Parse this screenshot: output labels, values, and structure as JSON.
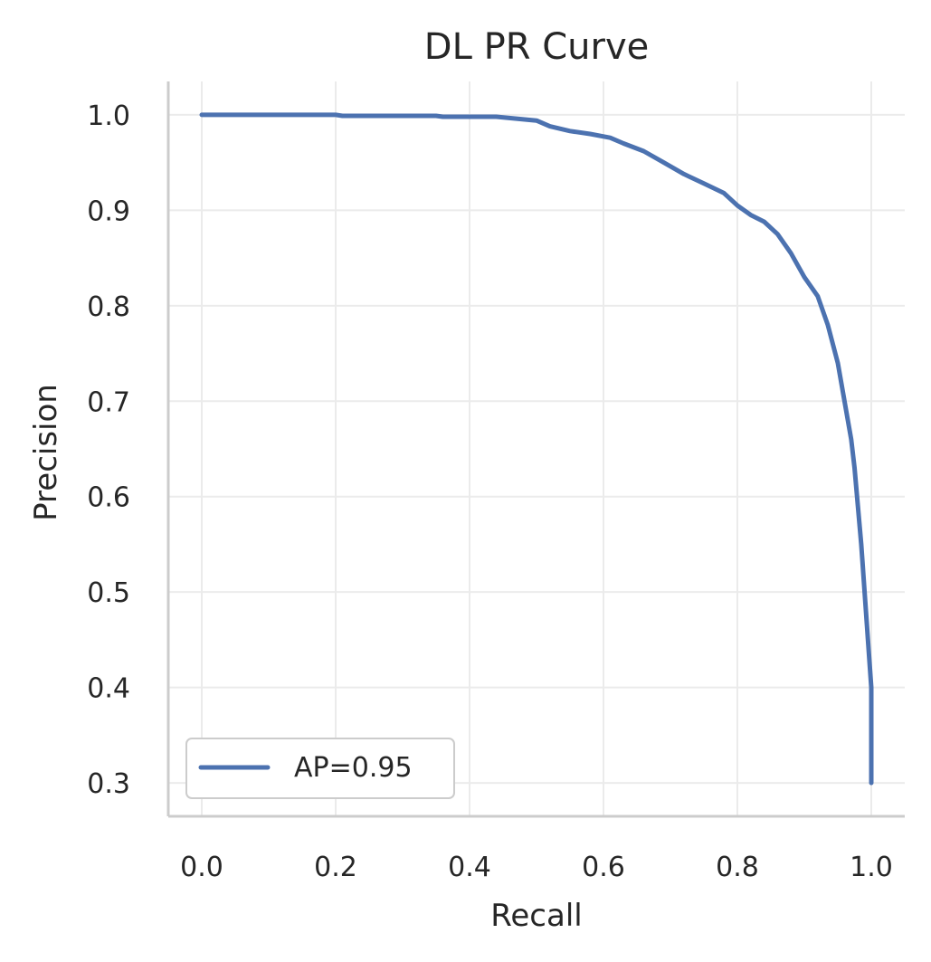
{
  "chart_data": {
    "type": "line",
    "title": "DL PR Curve",
    "xlabel": "Recall",
    "ylabel": "Precision",
    "xlim": [
      -0.05,
      1.05
    ],
    "ylim": [
      0.265,
      1.035
    ],
    "xticks": [
      {
        "value": 0.0,
        "label": "0.0"
      },
      {
        "value": 0.2,
        "label": "0.2"
      },
      {
        "value": 0.4,
        "label": "0.4"
      },
      {
        "value": 0.6,
        "label": "0.6"
      },
      {
        "value": 0.8,
        "label": "0.8"
      },
      {
        "value": 1.0,
        "label": "1.0"
      }
    ],
    "yticks": [
      {
        "value": 0.3,
        "label": "0.3"
      },
      {
        "value": 0.4,
        "label": "0.4"
      },
      {
        "value": 0.5,
        "label": "0.5"
      },
      {
        "value": 0.6,
        "label": "0.6"
      },
      {
        "value": 0.7,
        "label": "0.7"
      },
      {
        "value": 0.8,
        "label": "0.8"
      },
      {
        "value": 0.9,
        "label": "0.9"
      },
      {
        "value": 1.0,
        "label": "1.0"
      }
    ],
    "grid": true,
    "legend_position": "lower-left",
    "series": [
      {
        "name": "AP=0.95",
        "color": "#4c72b0",
        "points": [
          [
            0.0,
            1.0
          ],
          [
            0.2,
            1.0
          ],
          [
            0.21,
            0.999
          ],
          [
            0.3,
            0.999
          ],
          [
            0.35,
            0.999
          ],
          [
            0.36,
            0.998
          ],
          [
            0.44,
            0.998
          ],
          [
            0.47,
            0.996
          ],
          [
            0.5,
            0.994
          ],
          [
            0.52,
            0.988
          ],
          [
            0.55,
            0.983
          ],
          [
            0.58,
            0.98
          ],
          [
            0.61,
            0.976
          ],
          [
            0.63,
            0.97
          ],
          [
            0.66,
            0.962
          ],
          [
            0.69,
            0.95
          ],
          [
            0.72,
            0.938
          ],
          [
            0.75,
            0.928
          ],
          [
            0.78,
            0.918
          ],
          [
            0.8,
            0.905
          ],
          [
            0.82,
            0.895
          ],
          [
            0.84,
            0.888
          ],
          [
            0.86,
            0.875
          ],
          [
            0.88,
            0.855
          ],
          [
            0.9,
            0.83
          ],
          [
            0.92,
            0.81
          ],
          [
            0.935,
            0.78
          ],
          [
            0.95,
            0.74
          ],
          [
            0.96,
            0.7
          ],
          [
            0.97,
            0.66
          ],
          [
            0.975,
            0.63
          ],
          [
            0.98,
            0.59
          ],
          [
            0.985,
            0.55
          ],
          [
            0.99,
            0.5
          ],
          [
            0.995,
            0.45
          ],
          [
            1.0,
            0.4
          ],
          [
            1.0,
            0.3
          ]
        ]
      }
    ]
  }
}
